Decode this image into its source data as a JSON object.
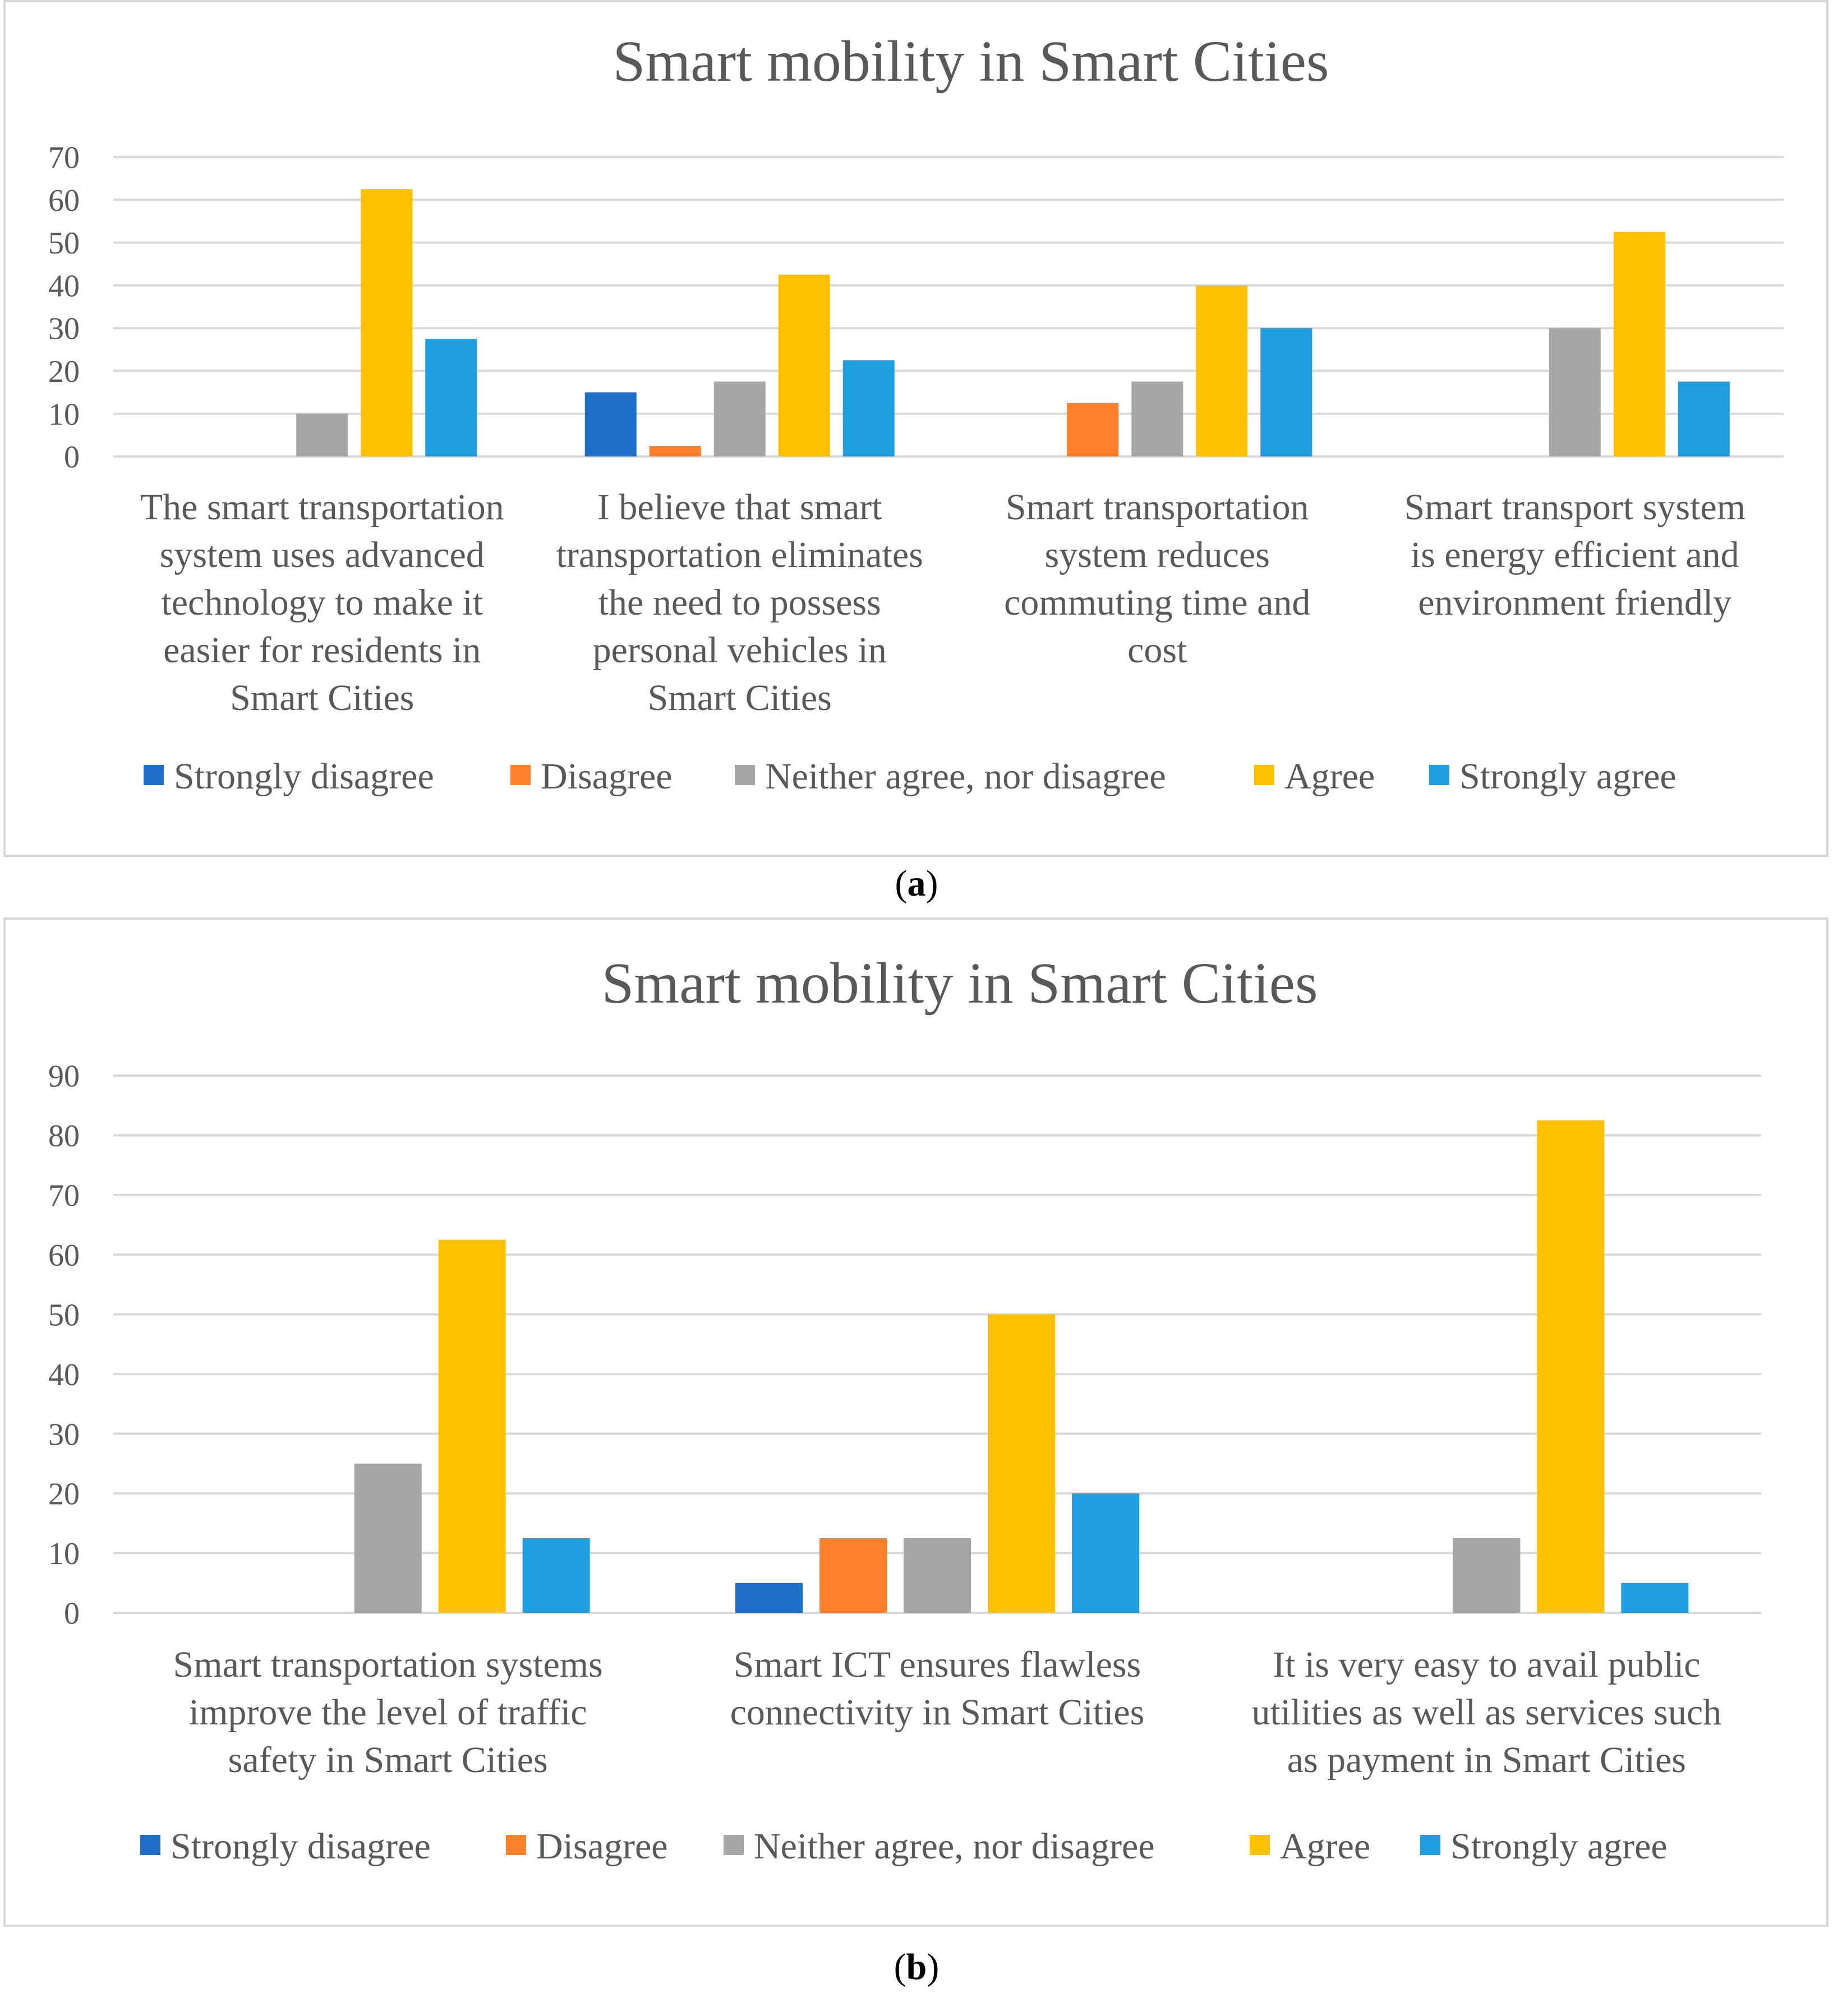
{
  "series_colors": {
    "Strongly disagree": "#1f6fc9",
    "Disagree": "#ff7f2a",
    "Neither agree, nor disagree": "#a6a6a6",
    "Agree": "#ffc000",
    "Strongly agree": "#1f9ee0"
  },
  "captions": {
    "a_label": "a",
    "b_label": "b"
  },
  "chart_data": [
    {
      "id": "a",
      "type": "bar",
      "title": "Smart mobility in Smart Cities",
      "ylim": [
        0,
        70
      ],
      "yticks": [
        0,
        10,
        20,
        30,
        40,
        50,
        60,
        70
      ],
      "grid": true,
      "legend_position": "bottom",
      "categories": [
        [
          "The smart transportation",
          "system uses advanced",
          "technology to make it",
          "easier for residents in",
          "Smart Cities"
        ],
        [
          "I believe that smart",
          "transportation eliminates",
          "the need to possess",
          "personal vehicles in",
          "Smart Cities"
        ],
        [
          "Smart transportation",
          "system reduces",
          "commuting time and",
          "cost"
        ],
        [
          "Smart transport system",
          "is energy efficient and",
          "environment friendly"
        ]
      ],
      "series": [
        {
          "name": "Strongly disagree",
          "values": [
            0,
            15,
            0,
            0
          ]
        },
        {
          "name": "Disagree",
          "values": [
            0,
            2.5,
            12.5,
            0
          ]
        },
        {
          "name": "Neither agree, nor disagree",
          "values": [
            10,
            17.5,
            17.5,
            30
          ]
        },
        {
          "name": "Agree",
          "values": [
            62.5,
            42.5,
            40,
            52.5
          ]
        },
        {
          "name": "Strongly agree",
          "values": [
            27.5,
            22.5,
            30,
            17.5
          ]
        }
      ]
    },
    {
      "id": "b",
      "type": "bar",
      "title": "Smart mobility in Smart Cities",
      "ylim": [
        0,
        90
      ],
      "yticks": [
        0,
        10,
        20,
        30,
        40,
        50,
        60,
        70,
        80,
        90
      ],
      "grid": true,
      "legend_position": "bottom",
      "categories": [
        [
          "Smart transportation systems",
          "improve the level of traffic",
          "safety in Smart Cities"
        ],
        [
          "Smart ICT ensures flawless",
          "connectivity in Smart Cities"
        ],
        [
          "It is very easy to avail public",
          "utilities as well as services such",
          "as payment in Smart Cities"
        ]
      ],
      "series": [
        {
          "name": "Strongly disagree",
          "values": [
            0,
            5,
            0
          ]
        },
        {
          "name": "Disagree",
          "values": [
            0,
            12.5,
            0
          ]
        },
        {
          "name": "Neither agree, nor disagree",
          "values": [
            25,
            12.5,
            12.5
          ]
        },
        {
          "name": "Agree",
          "values": [
            62.5,
            50,
            82.5
          ]
        },
        {
          "name": "Strongly agree",
          "values": [
            12.5,
            20,
            5
          ]
        }
      ]
    }
  ]
}
